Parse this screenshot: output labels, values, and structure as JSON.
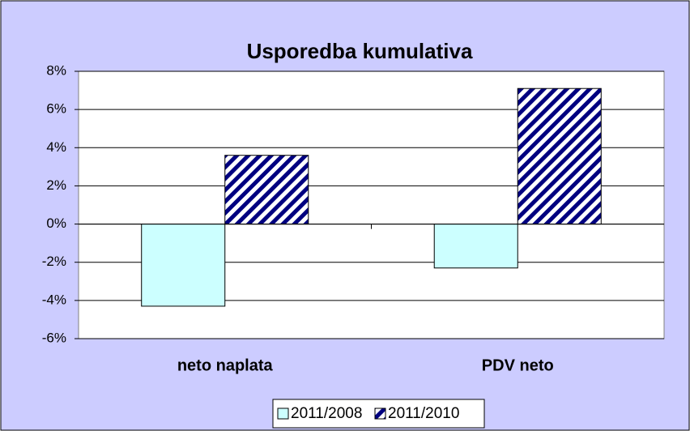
{
  "chart_data": {
    "type": "bar",
    "title": "Usporedba kumulativa",
    "categories": [
      "neto naplata",
      "PDV neto"
    ],
    "series": [
      {
        "name": "2011/2008",
        "color": "#ccffff",
        "hatch": false,
        "values": [
          -4.3,
          -2.3
        ]
      },
      {
        "name": "2011/2010",
        "color": "#000080",
        "hatch": true,
        "values": [
          3.6,
          7.1
        ]
      }
    ],
    "ylim": [
      -6,
      8
    ],
    "yticks": [
      {
        "value": -6,
        "label": "-6%"
      },
      {
        "value": -4,
        "label": "-4%"
      },
      {
        "value": -2,
        "label": "-2%"
      },
      {
        "value": 0,
        "label": "0%"
      },
      {
        "value": 2,
        "label": "2%"
      },
      {
        "value": 4,
        "label": "4%"
      },
      {
        "value": 6,
        "label": "6%"
      },
      {
        "value": 8,
        "label": "8%"
      }
    ],
    "grid": true,
    "legend": "bottom"
  }
}
